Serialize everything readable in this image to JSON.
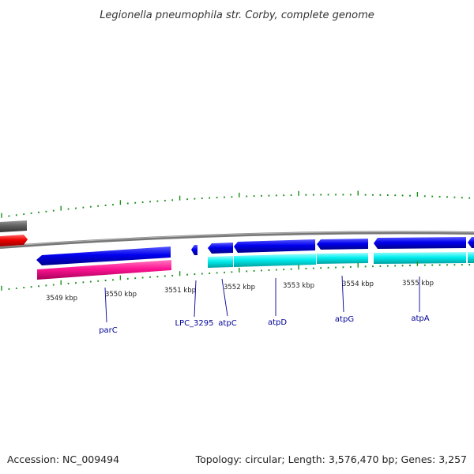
{
  "title": "Legionella pneumophila str. Corby, complete genome",
  "footer": {
    "accession": "Accession: NC_009494",
    "summary": "Topology: circular; Length: 3,576,470 bp; Genes: 3,257"
  },
  "scale": {
    "ticks": [
      "3549 kbp",
      "3550 kbp",
      "3551 kbp",
      "3552 kbp",
      "3553 kbp",
      "3554 kbp",
      "3555 kbp"
    ]
  },
  "genes": [
    {
      "name": "parC"
    },
    {
      "name": "LPC_3295"
    },
    {
      "name": "atpC"
    },
    {
      "name": "atpD"
    },
    {
      "name": "atpG"
    },
    {
      "name": "atpA"
    }
  ],
  "colors": {
    "gc_tick": "#1a8f1a",
    "backbone": "#808080",
    "gene_forward": "#0000ee",
    "cds_parC": "#ff1493",
    "cds_operon": "#00eeee",
    "rna_feature": "#ee0000",
    "other_feature": "#606060",
    "label_text": "#000099"
  }
}
